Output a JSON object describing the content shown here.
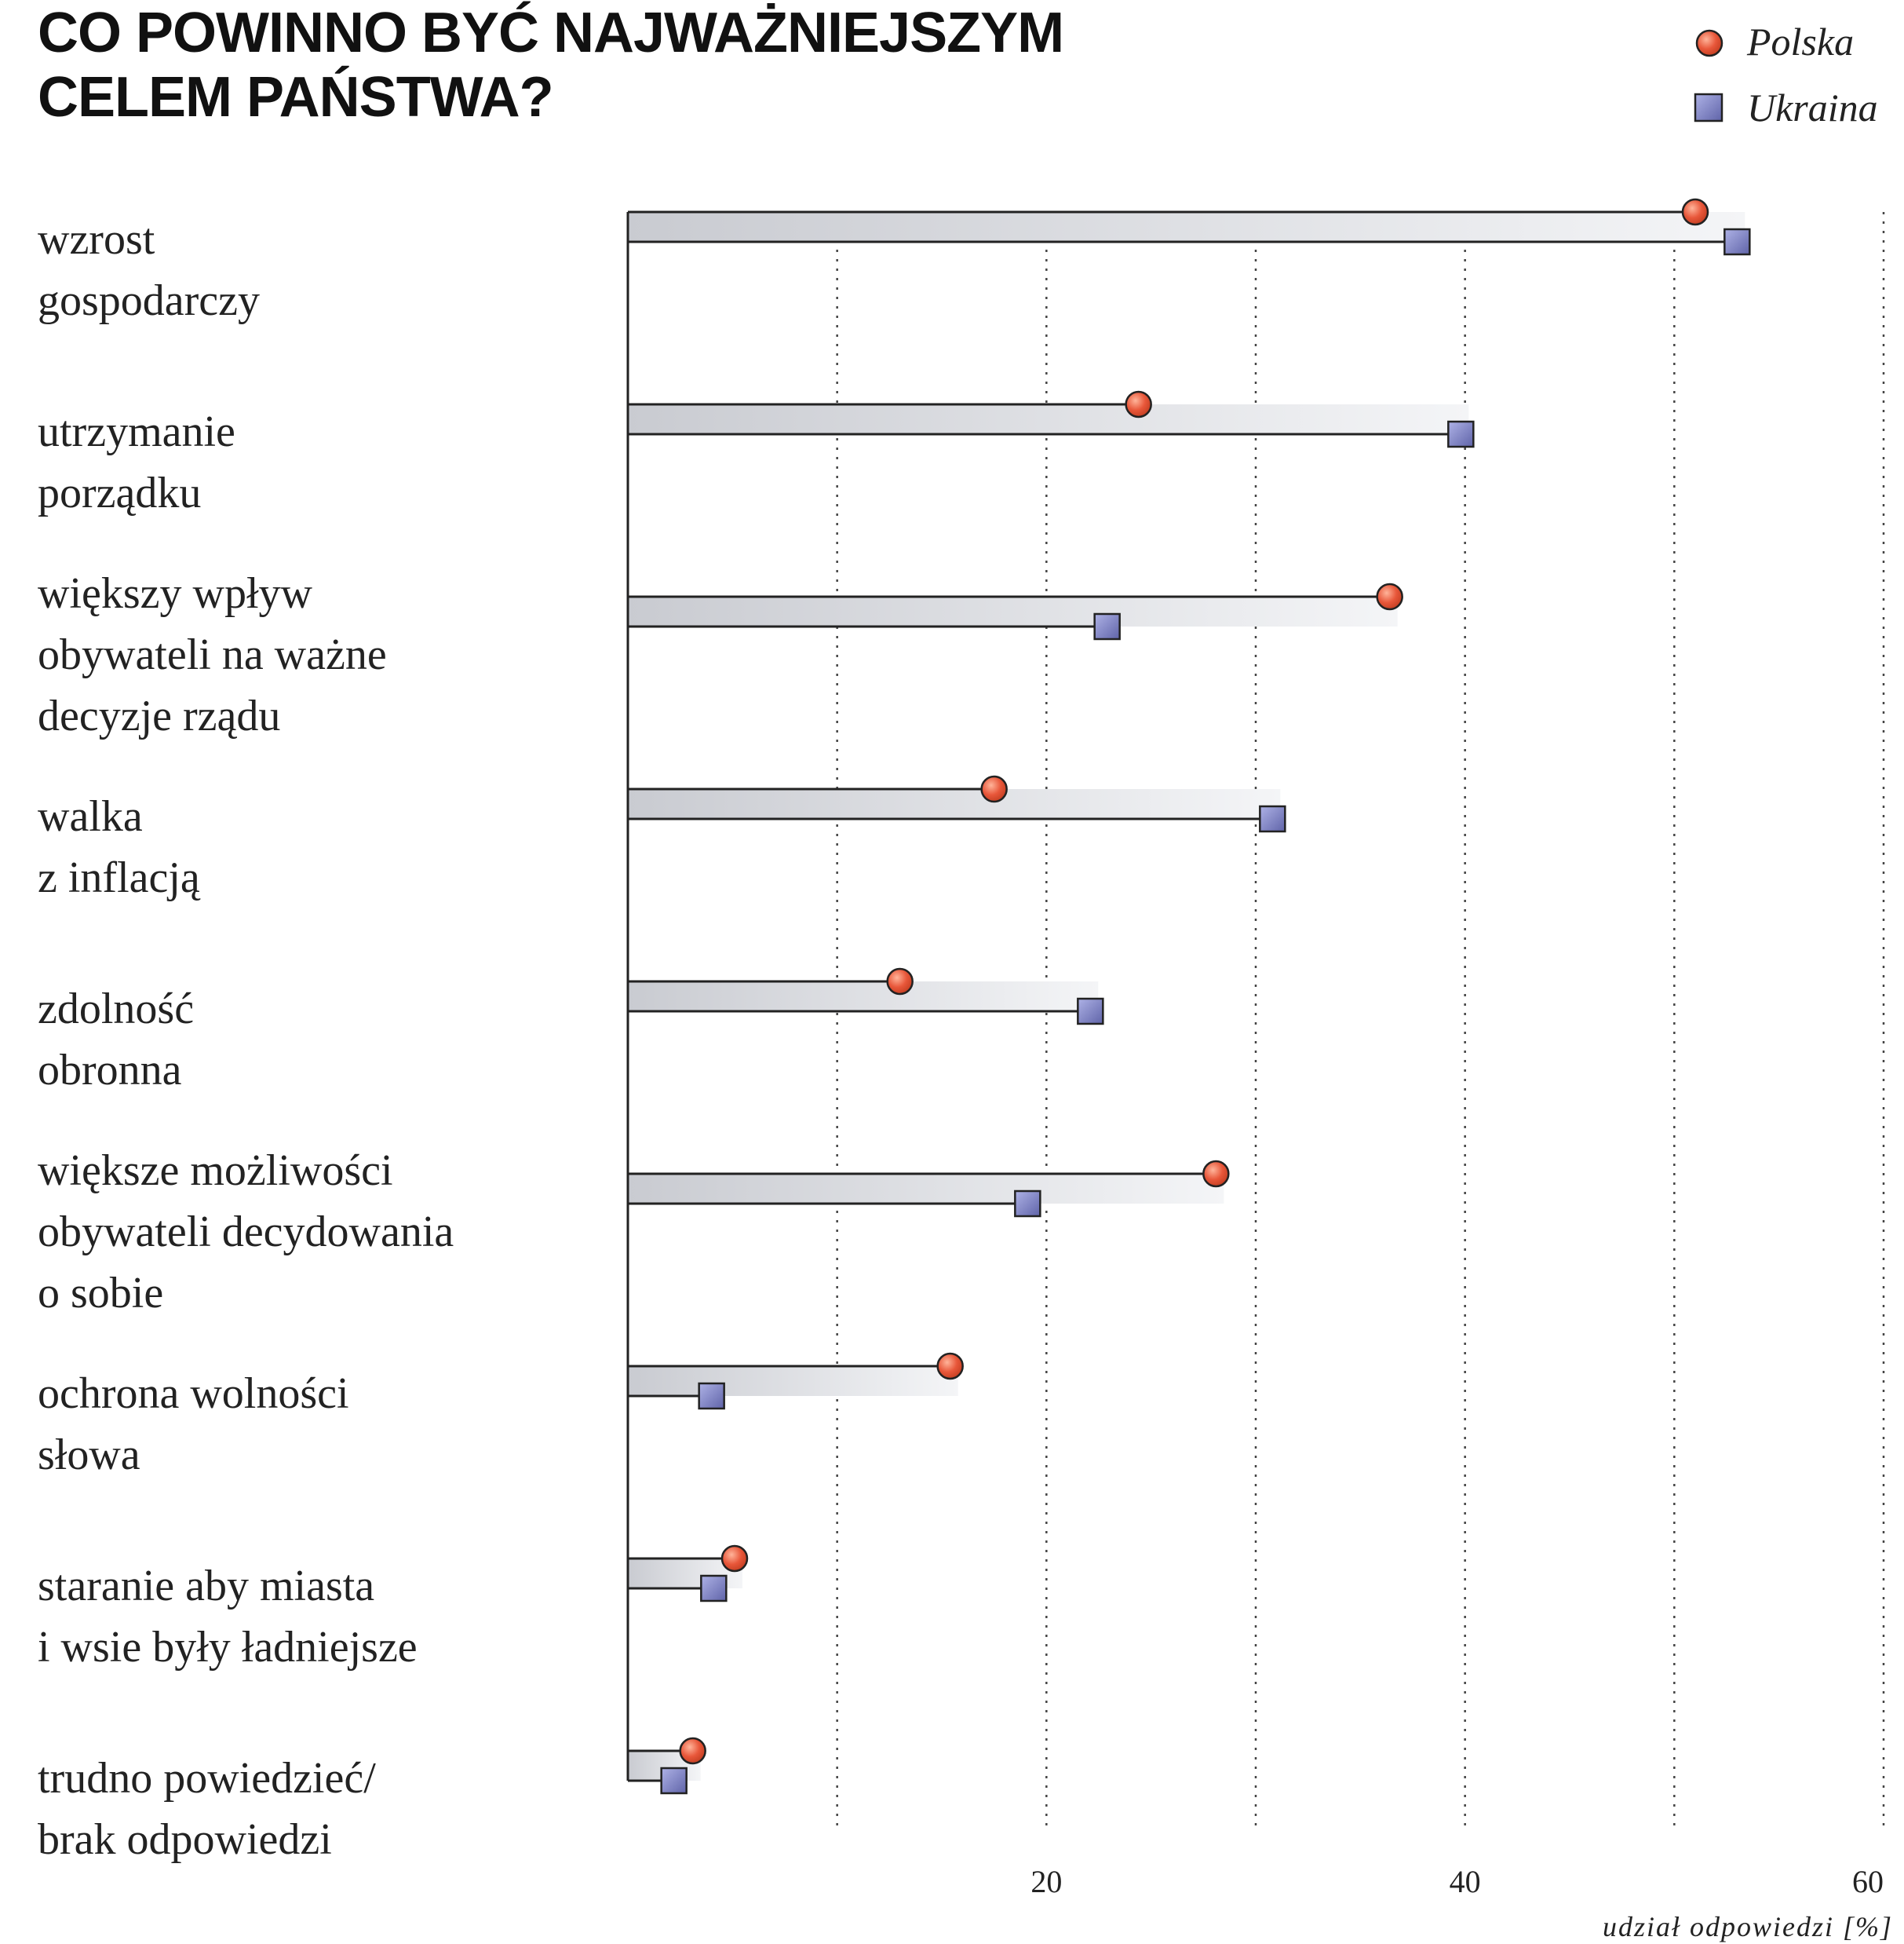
{
  "chart_data": {
    "type": "dot-bar",
    "title_lines": [
      "CO POWINNO BYĆ NAJWAŻNIEJSZYM",
      "CELEM PAŃSTWA?"
    ],
    "xlabel": "udział odpowiedzi [%]",
    "xlim": [
      0,
      60
    ],
    "xticks": [
      20,
      40,
      60
    ],
    "minor_gridlines": [
      10,
      20,
      30,
      40,
      50,
      60
    ],
    "categories": [
      [
        "wzrost",
        "gospodarczy"
      ],
      [
        "utrzymanie",
        "porządku"
      ],
      [
        "większy wpływ",
        "obywateli na ważne",
        "decyzje rządu"
      ],
      [
        "walka",
        "z inflacją"
      ],
      [
        "zdolność",
        "obronna"
      ],
      [
        "większe możliwości",
        "obywateli decydowania",
        "o sobie"
      ],
      [
        "ochrona wolności",
        "słowa"
      ],
      [
        "staranie aby miasta",
        "i wsie były ładniejsze"
      ],
      [
        "trudno powiedzieć/",
        "brak odpowiedzi"
      ]
    ],
    "series": [
      {
        "name": "Polska",
        "marker": "circle",
        "color": "#e8573a",
        "values": [
          51,
          24.4,
          36.4,
          17.5,
          13,
          28.1,
          15.4,
          5.1,
          3.1
        ]
      },
      {
        "name": "Ukraina",
        "marker": "square",
        "color": "#7a7fc4",
        "values": [
          53,
          39.8,
          22.9,
          30.8,
          22.1,
          19.1,
          4,
          4.1,
          2.2
        ]
      }
    ],
    "legend": "top-right",
    "grid": true
  }
}
